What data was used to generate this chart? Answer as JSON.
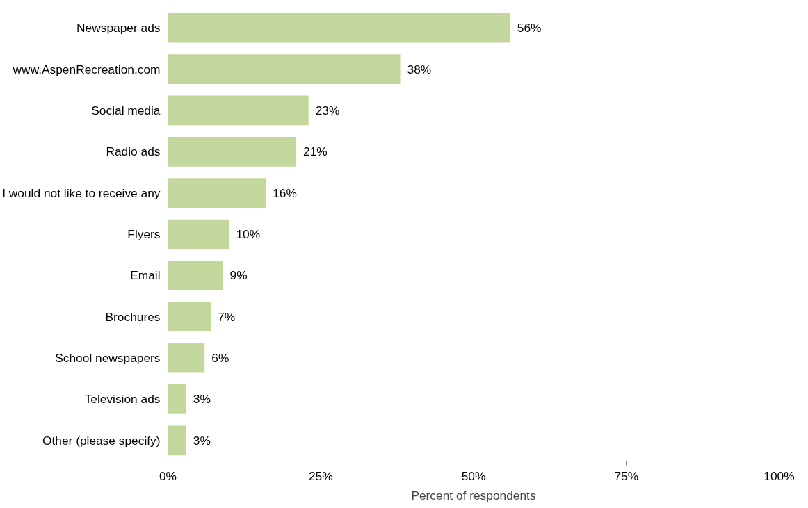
{
  "chart_data": {
    "type": "bar",
    "orientation": "horizontal",
    "xlabel": "Percent of respondents",
    "categories": [
      "Newspaper ads",
      "www.AspenRecreation.com",
      "Social media",
      "Radio ads",
      "I would not like to receive any",
      "Flyers",
      "Email",
      "Brochures",
      "School newspapers",
      "Television ads",
      "Other (please specify)"
    ],
    "values": [
      56,
      38,
      23,
      21,
      16,
      10,
      9,
      7,
      6,
      3,
      3
    ],
    "value_labels": [
      "56%",
      "38%",
      "23%",
      "21%",
      "16%",
      "10%",
      "9%",
      "7%",
      "6%",
      "3%",
      "3%"
    ],
    "color": "#c3d69b",
    "xlim": [
      0,
      100
    ],
    "xticks": [
      {
        "value": 0,
        "label": "0%"
      },
      {
        "value": 25,
        "label": "25%"
      },
      {
        "value": 50,
        "label": "50%"
      },
      {
        "value": 75,
        "label": "75%"
      },
      {
        "value": 100,
        "label": "100%"
      }
    ],
    "grid": false
  }
}
